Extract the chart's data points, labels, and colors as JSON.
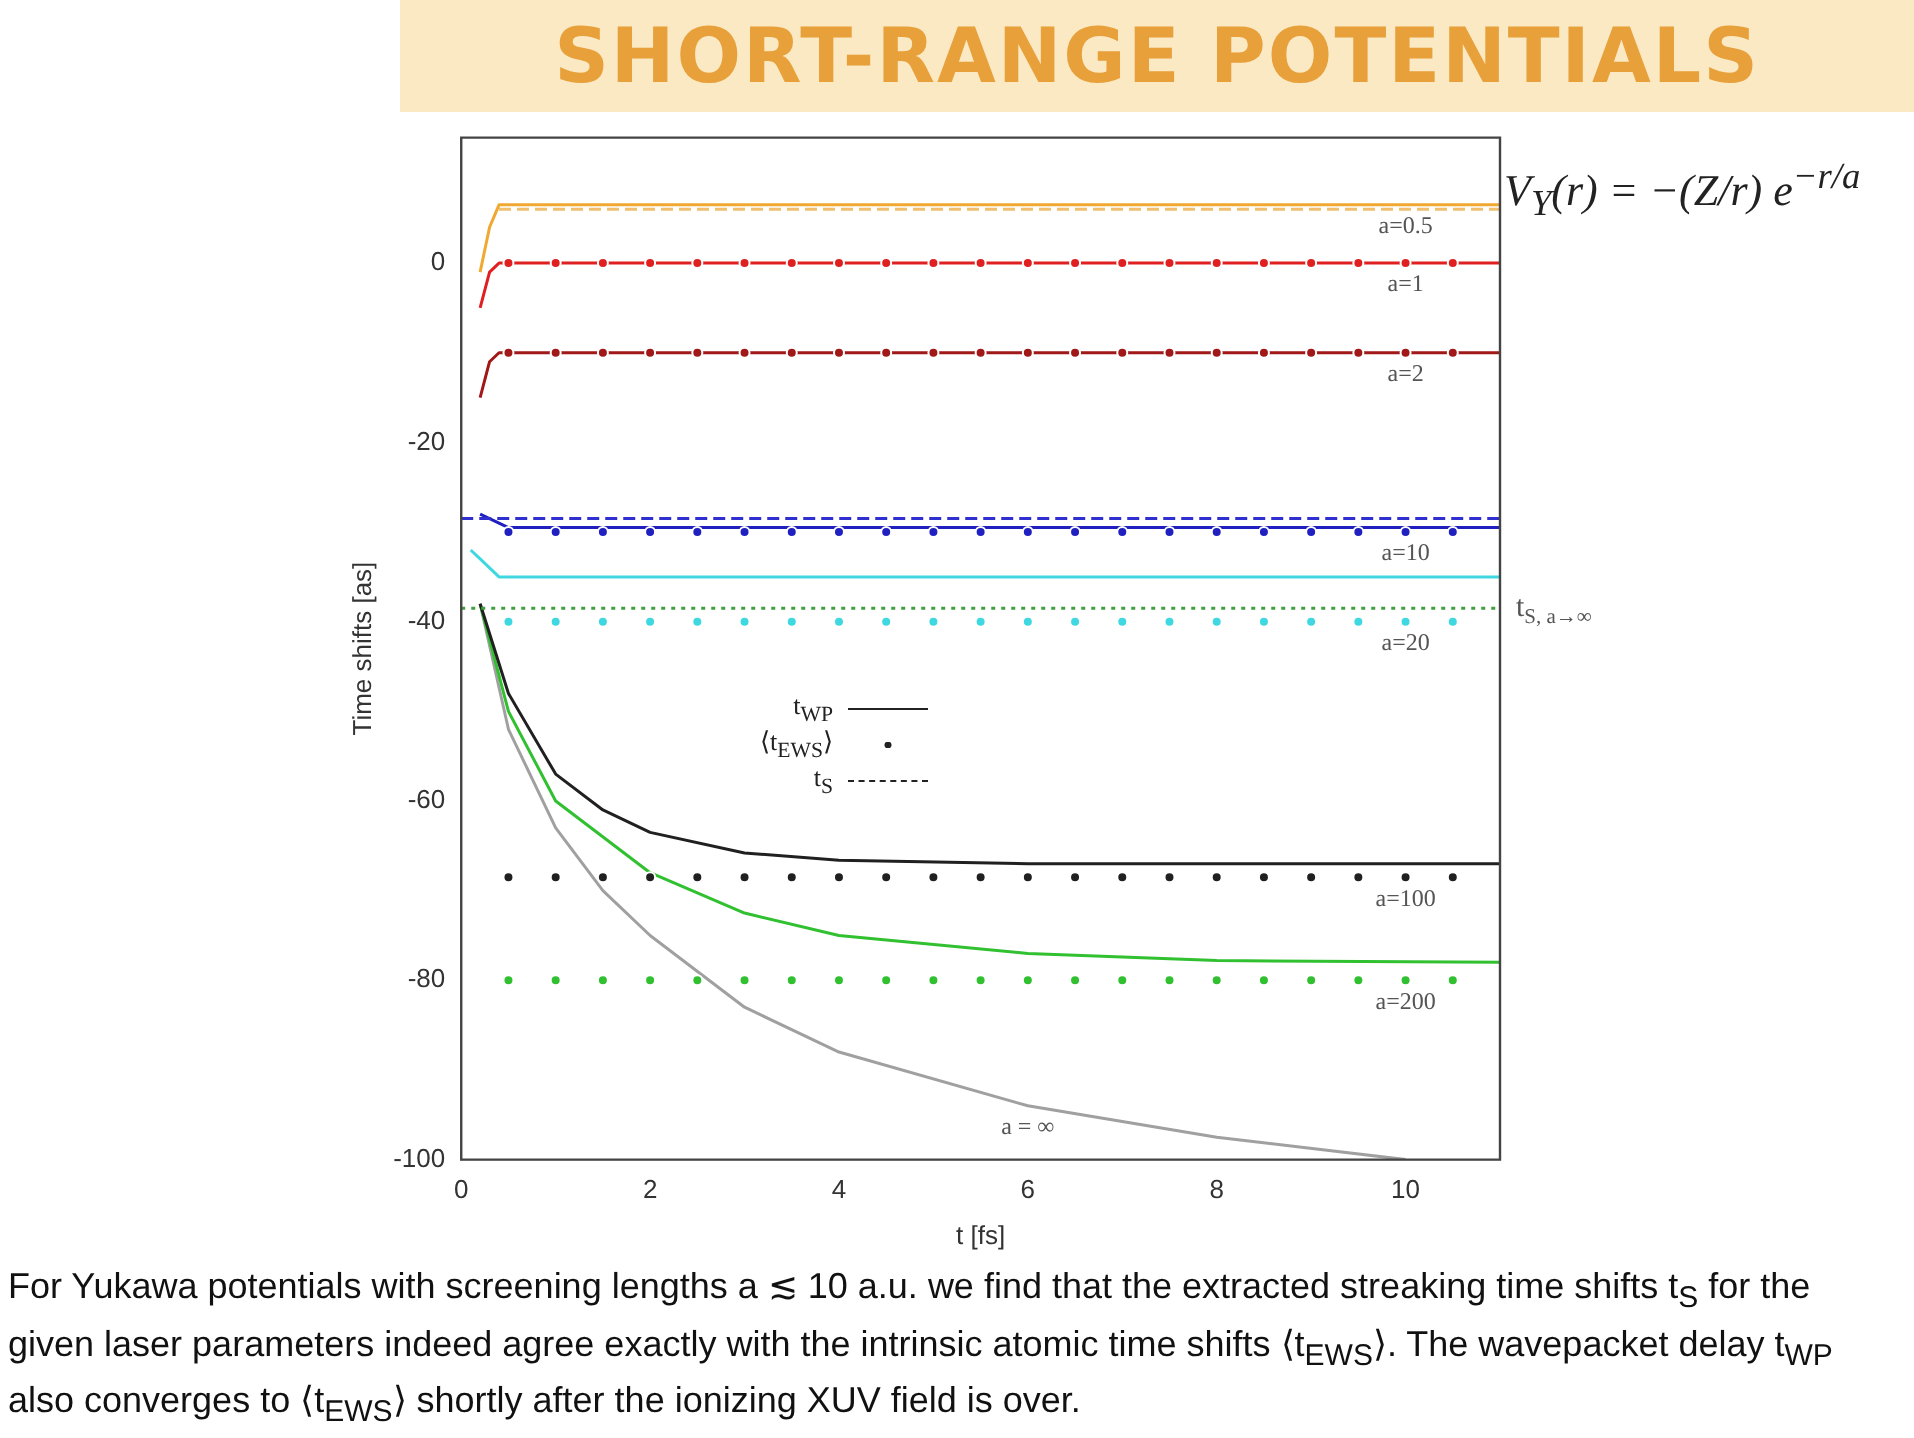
{
  "chart_data": {
    "type": "line",
    "title": "SHORT-RANGE POTENTIALS",
    "subtitle": "V$_{Y}$(r) = −(Z/r) e$^{−r/a}$",
    "xlabel": "t [fs]",
    "ylabel": "Time shifts [as]",
    "xlim": [
      0,
      11
    ],
    "xticks": [
      0,
      2,
      4,
      6,
      8,
      10
    ],
    "ylim": [
      -100,
      14
    ],
    "yticks": [
      -100,
      -80,
      -60,
      -40,
      -20,
      0
    ],
    "grid": false,
    "legend": false,
    "series": [
      {
        "color": "#f0a830",
        "x": [
          0.2,
          0.3,
          0.4,
          1,
          11
        ],
        "values": [
          -1,
          4,
          6.5,
          6.5,
          6.5
        ]
      },
      {
        "color": "#f0c070",
        "line_style": "dashed",
        "x": [
          0.4,
          11
        ],
        "values": [
          6,
          6
        ]
      },
      {
        "type": "scatter",
        "color": "#e02020",
        "marker": "circle",
        "x": [
          0.5,
          1,
          1.5,
          2,
          2.5,
          3,
          3.5,
          4,
          4.5,
          5,
          5.5,
          6,
          6.5,
          7,
          7.5,
          8,
          8.5,
          9,
          9.5,
          10,
          10.5
        ],
        "values": [
          0,
          0,
          0,
          0,
          0,
          0,
          0,
          0,
          0,
          0,
          0,
          0,
          0,
          0,
          0,
          0,
          0,
          0,
          0,
          0,
          0
        ]
      },
      {
        "color": "#e02020",
        "x": [
          0.2,
          0.3,
          0.4,
          1,
          11
        ],
        "values": [
          -5,
          -1,
          0,
          0,
          0
        ]
      },
      {
        "type": "scatter",
        "color": "#a01818",
        "marker": "circle",
        "x": [
          0.5,
          1,
          1.5,
          2,
          2.5,
          3,
          3.5,
          4,
          4.5,
          5,
          5.5,
          6,
          6.5,
          7,
          7.5,
          8,
          8.5,
          9,
          9.5,
          10,
          10.5
        ],
        "values": [
          -10,
          -10,
          -10,
          -10,
          -10,
          -10,
          -10,
          -10,
          -10,
          -10,
          -10,
          -10,
          -10,
          -10,
          -10,
          -10,
          -10,
          -10,
          -10,
          -10,
          -10
        ]
      },
      {
        "color": "#a01818",
        "x": [
          0.2,
          0.3,
          0.4,
          1,
          11
        ],
        "values": [
          -15,
          -11,
          -10,
          -10,
          -10
        ]
      },
      {
        "color": "#3030d0",
        "line_style": "dashed",
        "x": [
          0,
          11
        ],
        "values": [
          -28.5,
          -28.5
        ]
      },
      {
        "type": "scatter",
        "color": "#2020c0",
        "marker": "circle",
        "x": [
          0.5,
          1,
          1.5,
          2,
          2.5,
          3,
          3.5,
          4,
          4.5,
          5,
          5.5,
          6,
          6.5,
          7,
          7.5,
          8,
          8.5,
          9,
          9.5,
          10,
          10.5
        ],
        "values": [
          -30,
          -30,
          -30,
          -30,
          -30,
          -30,
          -30,
          -30,
          -30,
          -30,
          -30,
          -30,
          -30,
          -30,
          -30,
          -30,
          -30,
          -30,
          -30,
          -30,
          -30
        ]
      },
      {
        "color": "#2020c0",
        "x": [
          0.2,
          0.3,
          0.5,
          1,
          11
        ],
        "values": [
          -28,
          -28.5,
          -29.5,
          -29.5,
          -29.5
        ]
      },
      {
        "color": "#40d8e0",
        "x": [
          0.1,
          0.2,
          0.4,
          1,
          11
        ],
        "values": [
          -32,
          -33,
          -35,
          -35,
          -35
        ]
      },
      {
        "type": "scatter",
        "color": "#40d8e0",
        "marker": "circle",
        "x": [
          0.5,
          1,
          1.5,
          2,
          2.5,
          3,
          3.5,
          4,
          4.5,
          5,
          5.5,
          6,
          6.5,
          7,
          7.5,
          8,
          8.5,
          9,
          9.5,
          10,
          10.5
        ],
        "values": [
          -40,
          -40,
          -40,
          -40,
          -40,
          -40,
          -40,
          -40,
          -40,
          -40,
          -40,
          -40,
          -40,
          -40,
          -40,
          -40,
          -40,
          -40,
          -40,
          -40,
          -40
        ]
      },
      {
        "color": "#40a040",
        "line_style": "dotted",
        "x": [
          0,
          11
        ],
        "values": [
          -38.5,
          -38.5
        ]
      },
      {
        "color": "#202020",
        "x": [
          0.2,
          0.5,
          1,
          1.5,
          2,
          3,
          4,
          6,
          8,
          11
        ],
        "values": [
          -38,
          -48,
          -57,
          -61,
          -63.5,
          -65.8,
          -66.6,
          -67,
          -67,
          -67
        ]
      },
      {
        "type": "scatter",
        "color": "#202020",
        "marker": "circle",
        "x": [
          0.5,
          1,
          1.5,
          2,
          2.5,
          3,
          3.5,
          4,
          4.5,
          5,
          5.5,
          6,
          6.5,
          7,
          7.5,
          8,
          8.5,
          9,
          9.5,
          10,
          10.5
        ],
        "values": [
          -68.5,
          -68.5,
          -68.5,
          -68.5,
          -68.5,
          -68.5,
          -68.5,
          -68.5,
          -68.5,
          -68.5,
          -68.5,
          -68.5,
          -68.5,
          -68.5,
          -68.5,
          -68.5,
          -68.5,
          -68.5,
          -68.5,
          -68.5,
          -68.5
        ]
      },
      {
        "color": "#30c030",
        "x": [
          0.2,
          0.5,
          1,
          2,
          3,
          4,
          6,
          8,
          11
        ],
        "values": [
          -38,
          -50,
          -60,
          -68,
          -72.5,
          -75,
          -77,
          -77.8,
          -78
        ]
      },
      {
        "type": "scatter",
        "color": "#30c030",
        "marker": "circle",
        "x": [
          0.5,
          1,
          1.5,
          2,
          2.5,
          3,
          3.5,
          4,
          4.5,
          5,
          5.5,
          6,
          6.5,
          7,
          7.5,
          8,
          8.5,
          9,
          9.5,
          10,
          10.5
        ],
        "values": [
          -80,
          -80,
          -80,
          -80,
          -80,
          -80,
          -80,
          -80,
          -80,
          -80,
          -80,
          -80,
          -80,
          -80,
          -80,
          -80,
          -80,
          -80,
          -80,
          -80,
          -80
        ]
      },
      {
        "color": "#a0a0a0",
        "x": [
          0.2,
          0.5,
          1,
          1.5,
          2,
          3,
          4,
          6,
          8,
          10
        ],
        "values": [
          -38,
          -52,
          -63,
          -70,
          -75,
          -83,
          -88,
          -94,
          -97.5,
          -100
        ]
      }
    ],
    "annotations": [
      "t$_{WP}$",
      "⟨t$_{EWS}$⟩",
      "t$_{S}$",
      "For Yukawa potentials with screening lengths a ≲ 10 a.u. we find that the extracted streaking time shifts t$_{S}$ for the given laser parameters indeed agree exactly with the intrinsic atomic time shifts ⟨t$_{EWS}$⟩. The wavepacket delay t$_{WP}$ also converges to ⟨t$_{EWS}$⟩ shortly after the ionizing XUV field is over.",
      {
        "text": "a=0.5",
        "x": 10,
        "y": 6.5
      },
      {
        "text": "a=1",
        "x": 10,
        "y": 0
      },
      {
        "text": "a=2",
        "x": 10,
        "y": -10
      },
      {
        "text": "a=10",
        "x": 10,
        "y": -30
      },
      {
        "text": "a=20",
        "x": 10,
        "y": -40
      },
      {
        "text": "a=100",
        "x": 10,
        "y": -68.5
      },
      {
        "text": "a=200",
        "x": 10,
        "y": -80
      },
      {
        "text": "a = ∞",
        "x": 6,
        "y": -94
      },
      {
        "text": "t$_{S, a→∞}$",
        "x": 11,
        "y": -38.5
      }
    ]
  }
}
